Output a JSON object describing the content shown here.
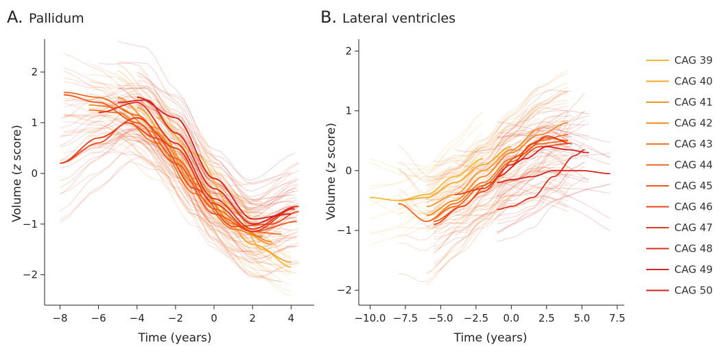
{
  "chart_data": [
    {
      "type": "line",
      "panel_letter": "A.",
      "title": "Pallidum",
      "xlabel": "Time (years)",
      "ylabel_prefix": "Volume (",
      "ylabel_italic": "z",
      "ylabel_suffix": " score)",
      "xlim": [
        -8.8,
        5.2
      ],
      "ylim": [
        -2.6,
        2.65
      ],
      "xticks": [
        -8,
        -6,
        -4,
        -2,
        0,
        2,
        4
      ],
      "xtick_labels": [
        "−8",
        "−6",
        "−4",
        "−2",
        "0",
        "2",
        "4"
      ],
      "yticks": [
        -2,
        -1,
        0,
        1,
        2
      ],
      "ytick_labels": [
        "−2",
        "−1",
        "0",
        "1",
        "2"
      ],
      "series": [
        {
          "name": "CAG 39",
          "color": "#f5b52e",
          "x": [
            -3,
            -1,
            1,
            2.5,
            4
          ],
          "y": [
            1.1,
            0.4,
            -0.7,
            -1.5,
            -1.85
          ]
        },
        {
          "name": "CAG 40",
          "color": "#f4a52a",
          "x": [
            -4,
            -2,
            0,
            2,
            4
          ],
          "y": [
            1.3,
            0.5,
            -0.6,
            -1.4,
            -1.75
          ]
        },
        {
          "name": "CAG 41",
          "color": "#f39526",
          "x": [
            -5,
            -3,
            -1,
            1,
            3
          ],
          "y": [
            1.5,
            0.9,
            -0.1,
            -1.0,
            -1.4
          ]
        },
        {
          "name": "CAG 42",
          "color": "#f28623",
          "x": [
            -6.5,
            -5,
            -3,
            -1,
            1,
            3
          ],
          "y": [
            1.35,
            1.3,
            0.8,
            -0.2,
            -1.0,
            -1.35
          ]
        },
        {
          "name": "CAG 43",
          "color": "#f1761f",
          "x": [
            -6.5,
            -5,
            -3,
            -1,
            1,
            2.5
          ],
          "y": [
            1.25,
            1.2,
            0.6,
            -0.4,
            -1.1,
            -1.25
          ]
        },
        {
          "name": "CAG 44",
          "color": "#ef661c",
          "x": [
            -7.8,
            -6,
            -4,
            -2,
            0,
            2,
            3.5
          ],
          "y": [
            1.6,
            1.5,
            1.15,
            0.3,
            -0.7,
            -1.15,
            -1.2
          ]
        },
        {
          "name": "CAG 45",
          "color": "#ee5619",
          "x": [
            -7.8,
            -6,
            -4,
            -2,
            0,
            2,
            4.3
          ],
          "y": [
            1.55,
            1.4,
            1.0,
            0.2,
            -0.8,
            -1.15,
            -0.95
          ]
        },
        {
          "name": "CAG 46",
          "color": "#ec4718",
          "x": [
            -8,
            -6,
            -4.5,
            -3,
            -1,
            1,
            3,
            4.4
          ],
          "y": [
            0.2,
            0.6,
            1.0,
            0.7,
            -0.3,
            -1.05,
            -1.0,
            -0.75
          ]
        },
        {
          "name": "CAG 47",
          "color": "#e63a1a",
          "x": [
            -8,
            -6,
            -4,
            -2,
            0,
            2,
            4.4
          ],
          "y": [
            0.2,
            0.7,
            1.1,
            0.5,
            -0.6,
            -1.15,
            -0.65
          ]
        },
        {
          "name": "CAG 48",
          "color": "#de2f1c",
          "x": [
            -6,
            -4,
            -2,
            0,
            2,
            4.3
          ],
          "y": [
            1.2,
            1.4,
            0.6,
            -0.5,
            -1.1,
            -0.65
          ]
        },
        {
          "name": "CAG 49",
          "color": "#d5251e",
          "x": [
            -5,
            -3.5,
            -2,
            0,
            2,
            4.2
          ],
          "y": [
            1.4,
            1.45,
            0.8,
            -0.3,
            -1.0,
            -0.7
          ]
        },
        {
          "name": "CAG 50",
          "color": "#d11f1f",
          "x": [
            -4,
            -2,
            0,
            2,
            4
          ],
          "y": [
            1.5,
            1.1,
            -0.1,
            -0.9,
            -0.8
          ]
        }
      ]
    },
    {
      "type": "line",
      "panel_letter": "B.",
      "title": "Lateral ventricles",
      "xlabel": "Time (years)",
      "ylabel_prefix": "Volume (",
      "ylabel_italic": "z",
      "ylabel_suffix": " score)",
      "xlim": [
        -10.8,
        8.0
      ],
      "ylim": [
        -2.25,
        2.2
      ],
      "xticks": [
        -10,
        -7.5,
        -5,
        -2.5,
        0,
        2.5,
        5,
        7.5
      ],
      "xtick_labels": [
        "−10.0",
        "−7.5",
        "−5.0",
        "−2.5",
        "0.0",
        "2.5",
        "5.0",
        "7.5"
      ],
      "yticks": [
        -2,
        -1,
        0,
        1,
        2
      ],
      "ytick_labels": [
        "−2",
        "−1",
        "0",
        "1",
        "2"
      ],
      "series": [
        {
          "name": "CAG 39",
          "color": "#f5b52e",
          "x": [
            -10,
            -8,
            -6,
            -4,
            -2
          ],
          "y": [
            -0.45,
            -0.5,
            -0.4,
            -0.1,
            0.2
          ]
        },
        {
          "name": "CAG 40",
          "color": "#f4a52a",
          "x": [
            -8,
            -6,
            -4,
            -2,
            0
          ],
          "y": [
            -0.5,
            -0.45,
            -0.2,
            0.1,
            0.4
          ]
        },
        {
          "name": "CAG 41",
          "color": "#f39526",
          "x": [
            -6,
            -4,
            -2,
            0,
            2
          ],
          "y": [
            -0.6,
            -0.4,
            0.0,
            0.35,
            0.7
          ]
        },
        {
          "name": "CAG 42",
          "color": "#f28623",
          "x": [
            -6,
            -4,
            -2,
            0,
            2,
            4
          ],
          "y": [
            -0.75,
            -0.5,
            -0.1,
            0.3,
            0.6,
            0.8
          ]
        },
        {
          "name": "CAG 43",
          "color": "#f1761f",
          "x": [
            -6,
            -4,
            -2,
            0,
            2,
            4
          ],
          "y": [
            -0.85,
            -0.55,
            -0.2,
            0.2,
            0.5,
            0.6
          ]
        },
        {
          "name": "CAG 44",
          "color": "#ef661c",
          "x": [
            -8,
            -6,
            -4,
            -2,
            0,
            2,
            4
          ],
          "y": [
            -0.55,
            -0.85,
            -0.6,
            -0.25,
            0.15,
            0.45,
            0.5
          ]
        },
        {
          "name": "CAG 45",
          "color": "#ee5619",
          "x": [
            -5.5,
            -3.5,
            -1.5,
            0.5,
            2.5,
            4
          ],
          "y": [
            -0.85,
            -0.6,
            -0.2,
            0.25,
            0.55,
            0.5
          ]
        },
        {
          "name": "CAG 46",
          "color": "#ec4718",
          "x": [
            -5.5,
            -3.5,
            -2,
            0,
            2,
            4
          ],
          "y": [
            -0.9,
            -0.6,
            -0.35,
            0.1,
            0.4,
            0.45
          ]
        },
        {
          "name": "CAG 47",
          "color": "#e63a1a",
          "x": [
            -4,
            -2,
            0,
            1.5,
            2.5,
            4.3
          ],
          "y": [
            -0.4,
            -0.3,
            0.1,
            0.45,
            0.58,
            0.45
          ]
        },
        {
          "name": "CAG 48",
          "color": "#de2f1c",
          "x": [
            -1,
            0,
            1.5,
            3,
            4.5,
            5.2
          ],
          "y": [
            -0.65,
            -0.6,
            -0.45,
            -0.1,
            0.25,
            0.35
          ]
        },
        {
          "name": "CAG 49",
          "color": "#d5251e",
          "x": [
            -1,
            0,
            1.5,
            3,
            5,
            7
          ],
          "y": [
            -0.2,
            -0.15,
            -0.1,
            0.0,
            0.0,
            -0.05
          ]
        },
        {
          "name": "CAG 50",
          "color": "#d11f1f",
          "x": [
            -1,
            1,
            2.5,
            4,
            5.5
          ],
          "y": [
            -0.1,
            0.2,
            0.4,
            0.35,
            0.3
          ]
        }
      ]
    }
  ],
  "legend": [
    {
      "label": "CAG 39",
      "color": "#f5b52e"
    },
    {
      "label": "CAG 40",
      "color": "#f4a52a"
    },
    {
      "label": "CAG 41",
      "color": "#f39526"
    },
    {
      "label": "CAG 42",
      "color": "#f28623"
    },
    {
      "label": "CAG 43",
      "color": "#f1761f"
    },
    {
      "label": "CAG 44",
      "color": "#ef661c"
    },
    {
      "label": "CAG 45",
      "color": "#ee5619"
    },
    {
      "label": "CAG 46",
      "color": "#ec4718"
    },
    {
      "label": "CAG 47",
      "color": "#e63a1a"
    },
    {
      "label": "CAG 48",
      "color": "#de2f1c"
    },
    {
      "label": "CAG 49",
      "color": "#d5251e"
    },
    {
      "label": "CAG 50",
      "color": "#d11f1f"
    }
  ]
}
